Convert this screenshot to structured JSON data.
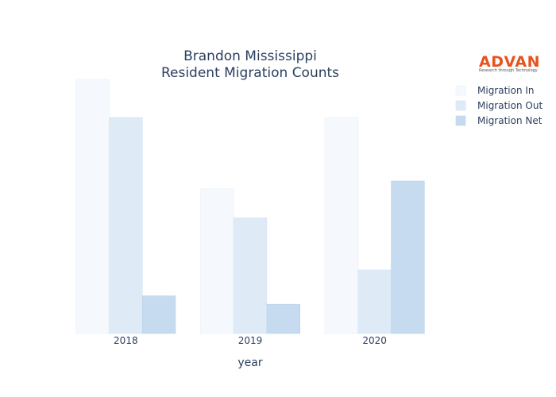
{
  "chart_data": {
    "type": "bar",
    "title": [
      "Brandon Mississippi",
      "Resident Migration Counts"
    ],
    "xlabel": "year",
    "ylabel": "",
    "categories": [
      "2018",
      "2019",
      "2020"
    ],
    "series": [
      {
        "name": "Migration In",
        "values": [
          1000,
          570,
          850
        ],
        "color": "#f5f9fd",
        "stroke": "#e9f0f8"
      },
      {
        "name": "Migration Out",
        "values": [
          850,
          455,
          250
        ],
        "color": "#deebf7",
        "stroke": "#d4e3f3"
      },
      {
        "name": "Migration Net",
        "values": [
          148,
          115,
          600
        ],
        "color": "#c6dbef",
        "stroke": "#bcd3ea"
      }
    ],
    "ylim": [
      0,
      1000
    ],
    "grid": false,
    "legend_position": "top-right",
    "y_ticks_visible": false
  },
  "logo": {
    "name": "ADVAN",
    "tagline": "Research through Technology",
    "color": "#e8521c"
  }
}
